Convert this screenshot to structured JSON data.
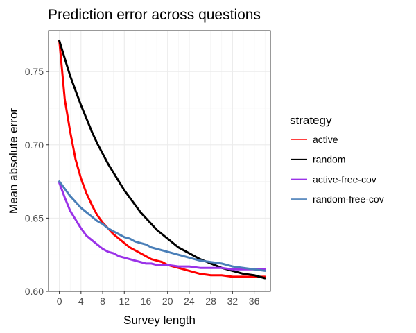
{
  "chart_data": {
    "type": "line",
    "title": "Prediction error across questions",
    "xlabel": "Survey length",
    "ylabel": "Mean absolute error",
    "xlim": [
      -2,
      39
    ],
    "ylim": [
      0.6,
      0.778
    ],
    "xticks": [
      "0",
      "4",
      "8",
      "12",
      "16",
      "20",
      "24",
      "28",
      "32",
      "36"
    ],
    "yticks": [
      "0.60",
      "0.65",
      "0.70",
      "0.75"
    ],
    "grid": true,
    "legend": {
      "title": "strategy",
      "position": "right"
    },
    "x": [
      0,
      1,
      2,
      3,
      4,
      5,
      6,
      7,
      8,
      9,
      10,
      11,
      12,
      13,
      14,
      15,
      16,
      17,
      18,
      19,
      20,
      22,
      24,
      26,
      28,
      30,
      32,
      34,
      36,
      38
    ],
    "series": [
      {
        "name": "active",
        "color": "#ff0000",
        "values": [
          0.771,
          0.731,
          0.709,
          0.69,
          0.677,
          0.667,
          0.659,
          0.652,
          0.647,
          0.643,
          0.639,
          0.636,
          0.633,
          0.63,
          0.628,
          0.626,
          0.624,
          0.622,
          0.621,
          0.62,
          0.618,
          0.616,
          0.614,
          0.612,
          0.611,
          0.611,
          0.61,
          0.61,
          0.61,
          0.61
        ]
      },
      {
        "name": "random",
        "color": "#000000",
        "values": [
          0.771,
          0.759,
          0.747,
          0.737,
          0.727,
          0.718,
          0.709,
          0.701,
          0.694,
          0.687,
          0.681,
          0.675,
          0.669,
          0.664,
          0.659,
          0.654,
          0.65,
          0.646,
          0.642,
          0.639,
          0.636,
          0.63,
          0.626,
          0.622,
          0.619,
          0.616,
          0.614,
          0.612,
          0.611,
          0.609
        ]
      },
      {
        "name": "active-free-cov",
        "color": "#9a32e8",
        "values": [
          0.674,
          0.664,
          0.655,
          0.649,
          0.643,
          0.638,
          0.635,
          0.632,
          0.629,
          0.627,
          0.626,
          0.624,
          0.623,
          0.622,
          0.621,
          0.62,
          0.619,
          0.619,
          0.618,
          0.618,
          0.618,
          0.617,
          0.617,
          0.616,
          0.616,
          0.616,
          0.615,
          0.615,
          0.615,
          0.615
        ]
      },
      {
        "name": "random-free-cov",
        "color": "#4a7fb8",
        "values": [
          0.675,
          0.67,
          0.665,
          0.661,
          0.657,
          0.654,
          0.651,
          0.648,
          0.646,
          0.643,
          0.641,
          0.639,
          0.637,
          0.636,
          0.634,
          0.633,
          0.632,
          0.63,
          0.629,
          0.628,
          0.627,
          0.625,
          0.623,
          0.621,
          0.62,
          0.619,
          0.617,
          0.616,
          0.615,
          0.614
        ]
      }
    ]
  }
}
